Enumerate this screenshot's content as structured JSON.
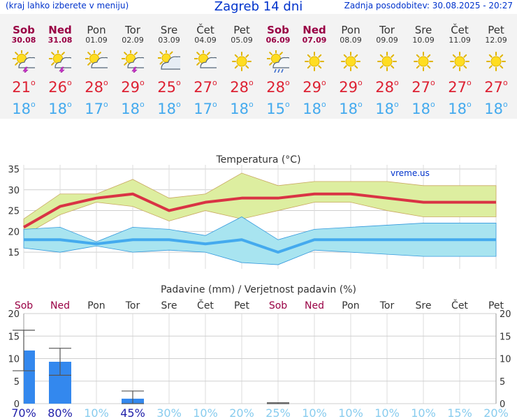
{
  "header": {
    "left_note": "(kraj lahko izberete v meniju)",
    "title": "Zagreb 14 dni",
    "updated": "Zadnja posodobitev: 30.08.2025 - 20:27"
  },
  "days": [
    {
      "name": "Sob",
      "date": "30.08",
      "weekend": true,
      "icon": "sun-cloud-thunder-icon",
      "tmax": "21",
      "tmin": "18"
    },
    {
      "name": "Ned",
      "date": "31.08",
      "weekend": true,
      "icon": "sun-cloud-thunder-icon",
      "tmax": "26",
      "tmin": "18"
    },
    {
      "name": "Pon",
      "date": "01.09",
      "weekend": false,
      "icon": "sun-cloud-icon",
      "tmax": "28",
      "tmin": "17"
    },
    {
      "name": "Tor",
      "date": "02.09",
      "weekend": false,
      "icon": "sun-cloud-thunder-icon",
      "tmax": "29",
      "tmin": "18"
    },
    {
      "name": "Sre",
      "date": "03.09",
      "weekend": false,
      "icon": "sun-cloudy-icon",
      "tmax": "25",
      "tmin": "18"
    },
    {
      "name": "Čet",
      "date": "04.09",
      "weekend": false,
      "icon": "sun-cloud-icon",
      "tmax": "27",
      "tmin": "17"
    },
    {
      "name": "Pet",
      "date": "05.09",
      "weekend": false,
      "icon": "sun-icon",
      "tmax": "28",
      "tmin": "18"
    },
    {
      "name": "Sob",
      "date": "06.09",
      "weekend": true,
      "icon": "sun-cloud-rain-icon",
      "tmax": "28",
      "tmin": "15"
    },
    {
      "name": "Ned",
      "date": "07.09",
      "weekend": true,
      "icon": "sun-icon",
      "tmax": "29",
      "tmin": "18"
    },
    {
      "name": "Pon",
      "date": "08.09",
      "weekend": false,
      "icon": "sun-icon",
      "tmax": "29",
      "tmin": "18"
    },
    {
      "name": "Tor",
      "date": "09.09",
      "weekend": false,
      "icon": "sun-icon",
      "tmax": "28",
      "tmin": "18"
    },
    {
      "name": "Sre",
      "date": "10.09",
      "weekend": false,
      "icon": "sun-icon",
      "tmax": "27",
      "tmin": "18"
    },
    {
      "name": "Čet",
      "date": "11.09",
      "weekend": false,
      "icon": "sun-icon",
      "tmax": "27",
      "tmin": "18"
    },
    {
      "name": "Pet",
      "date": "12.09",
      "weekend": false,
      "icon": "sun-icon",
      "tmax": "27",
      "tmin": "18"
    }
  ],
  "colors": {
    "blue_text": "#0033cc",
    "weekend": "#990044",
    "weekday": "#333333",
    "tmax": "#dd2233",
    "tmin": "#44aaee",
    "max_band": "#ddeea0",
    "min_band": "#a8e4f0",
    "max_line": "#d93344",
    "min_line": "#44aaee",
    "bar": "#3388ee",
    "prob_high": "#2222aa",
    "prob_low": "#88ccee"
  },
  "chart_data": [
    {
      "type": "area",
      "title": "Temperatura (°C)",
      "watermark": "vreme.us",
      "ylim": [
        11,
        36
      ],
      "yticks": [
        15,
        20,
        25,
        30,
        35
      ],
      "x": [
        1,
        2,
        3,
        4,
        5,
        6,
        7,
        8,
        9,
        10,
        11,
        12,
        13,
        14
      ],
      "series": [
        {
          "role": "max",
          "values": [
            21,
            26,
            28,
            29,
            25,
            27,
            28,
            28,
            29,
            29,
            28,
            27,
            27,
            27
          ]
        },
        {
          "role": "max_upper",
          "values": [
            23,
            29,
            29,
            32.5,
            28,
            29,
            34,
            31,
            32,
            32,
            32,
            31,
            31,
            31
          ]
        },
        {
          "role": "max_lower",
          "values": [
            19,
            24,
            27,
            26,
            22.5,
            25,
            23,
            25,
            27,
            27,
            25,
            23.5,
            23.5,
            23.5
          ]
        },
        {
          "role": "min",
          "values": [
            18,
            18,
            17,
            18,
            18,
            17,
            18,
            15,
            18,
            18,
            18,
            18,
            18,
            18
          ]
        },
        {
          "role": "min_upper",
          "values": [
            20.5,
            21,
            17.5,
            21,
            20.5,
            19,
            23.5,
            18,
            20.5,
            21,
            21.5,
            22,
            22,
            22
          ]
        },
        {
          "role": "min_lower",
          "values": [
            16,
            15,
            16.5,
            15,
            15.5,
            15,
            12.5,
            12,
            15.5,
            15,
            14.5,
            14,
            14,
            14
          ]
        }
      ]
    },
    {
      "type": "bar",
      "title": "Padavine (mm) / Verjetnost padavin (%)",
      "ylim": [
        0,
        20
      ],
      "yticks": [
        0,
        5,
        10,
        15,
        20
      ],
      "categories": [
        "Sob",
        "Ned",
        "Pon",
        "Tor",
        "Sre",
        "Čet",
        "Pet",
        "Sob",
        "Ned",
        "Pon",
        "Tor",
        "Sre",
        "Čet",
        "Pet"
      ],
      "values": [
        11.8,
        9.3,
        0,
        1.1,
        0,
        0,
        0,
        0.1,
        0,
        0,
        0,
        0,
        0,
        0
      ],
      "err_low": [
        7.3,
        6.3,
        0,
        0,
        0,
        0,
        0,
        0,
        0,
        0,
        0,
        0,
        0,
        0
      ],
      "err_high": [
        16.3,
        12.3,
        0,
        2.8,
        0,
        0,
        0,
        0.2,
        0,
        0,
        0,
        0,
        0,
        0
      ],
      "probability": [
        "70%",
        "80%",
        "10%",
        "45%",
        "30%",
        "10%",
        "20%",
        "25%",
        "10%",
        "10%",
        "10%",
        "10%",
        "15%",
        "20%"
      ]
    }
  ]
}
